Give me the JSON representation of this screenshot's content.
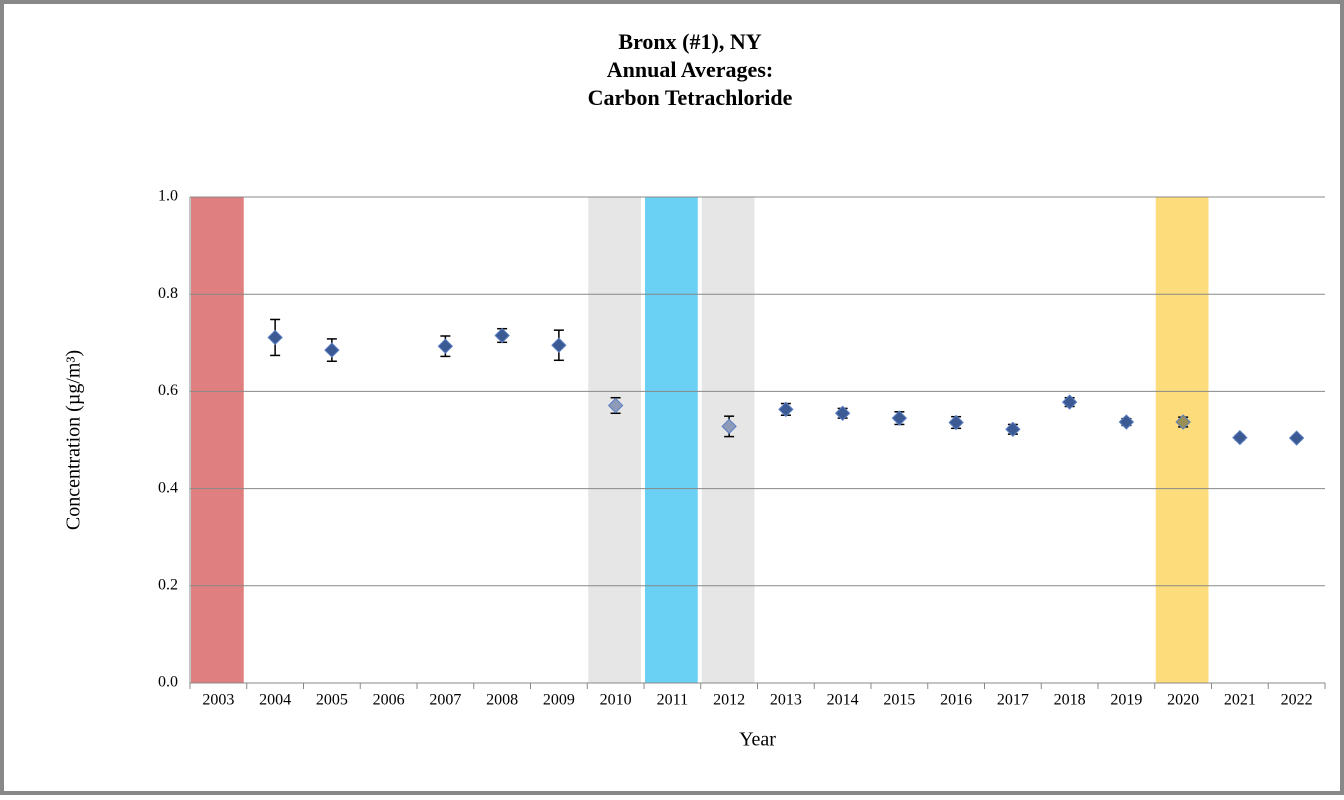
{
  "chart_data": {
    "type": "errorscatter",
    "title": [
      "Bronx (#1), NY",
      "Annual Averages:",
      "Carbon Tetrachloride"
    ],
    "x_label": "Year",
    "y_label": "Concentration (µg/m³)",
    "categories": [
      "2003",
      "2004",
      "2005",
      "2006",
      "2007",
      "2008",
      "2009",
      "2010",
      "2011",
      "2012",
      "2013",
      "2014",
      "2015",
      "2016",
      "2017",
      "2018",
      "2019",
      "2020",
      "2021",
      "2022"
    ],
    "values": [
      null,
      0.711,
      0.685,
      null,
      0.693,
      0.715,
      0.695,
      0.571,
      null,
      0.528,
      0.563,
      0.555,
      0.545,
      0.536,
      0.522,
      0.578,
      0.537,
      0.537,
      0.505,
      0.504
    ],
    "errors": [
      null,
      0.037,
      0.023,
      null,
      0.021,
      0.014,
      0.031,
      0.016,
      null,
      0.021,
      0.012,
      0.01,
      0.013,
      0.012,
      0.01,
      0.009,
      0.007,
      0.01,
      0.005,
      0.004
    ],
    "colors": [
      "#3b5a93",
      "#3b5a93",
      "#3b5a93",
      "#3b5a93",
      "#3b5a93",
      "#3b5a93",
      "#3b5a93",
      "#8e9bb8",
      "#3b5a93",
      "#8e9bb8",
      "#3b5a93",
      "#3b5a93",
      "#3b5a93",
      "#3b5a93",
      "#3b5a93",
      "#3b5a93",
      "#3b5a93",
      "#9a8f55",
      "#3b5a93",
      "#3b5a93"
    ],
    "highlights": [
      {
        "category": "2003",
        "color": "#e07f7f"
      },
      {
        "category": "2010",
        "color": "#e6e6e6"
      },
      {
        "category": "2011",
        "color": "#6bd1f4"
      },
      {
        "category": "2012",
        "color": "#e6e6e6"
      },
      {
        "category": "2020",
        "color": "#fddc7b"
      }
    ],
    "ylim": [
      0,
      1
    ],
    "yticks": [
      {
        "value": 0,
        "label": "0.0"
      },
      {
        "value": 0.2,
        "label": "0.2"
      },
      {
        "value": 0.4,
        "label": "0.4"
      },
      {
        "value": 0.6,
        "label": "0.6"
      },
      {
        "value": 0.8,
        "label": "0.8"
      },
      {
        "value": 1,
        "label": "1.0"
      }
    ],
    "grid": true
  }
}
